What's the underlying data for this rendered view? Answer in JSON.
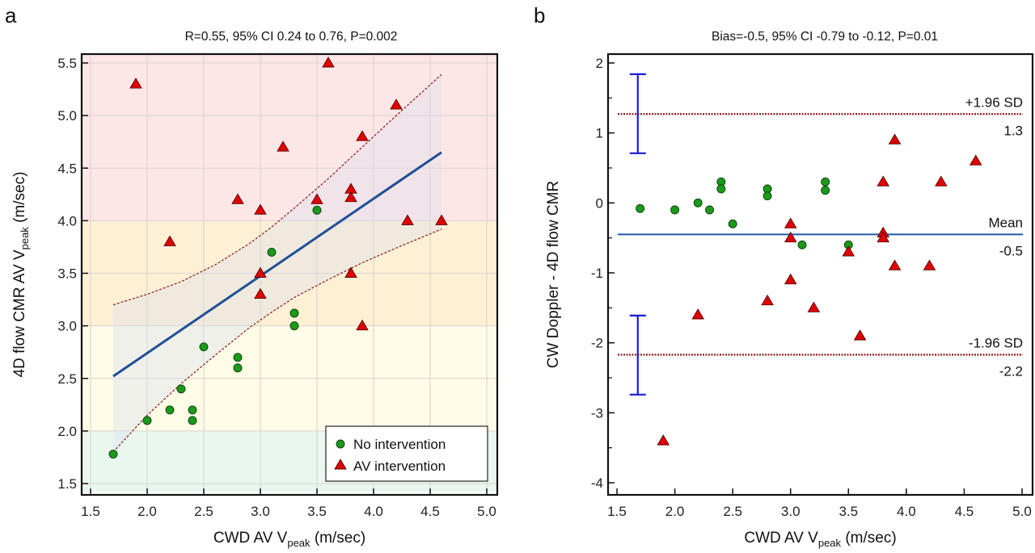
{
  "colors": {
    "no_intervention": "#1a9a1a",
    "av_intervention": "#e00000",
    "regression_line": "#1f4f96",
    "ci_curve": "#8b1a1a",
    "ci_fill": "#d8dcf0",
    "sd_line": "#8b1a1a",
    "mean_line": "#1f5aa6",
    "ci_errorbar": "#1a1ad6",
    "band_severe": "#fde6e6",
    "band_moderate": "#fdf0d5",
    "band_mild": "#fefbe6",
    "band_normal": "#e9f7ee"
  },
  "chart_data": [
    {
      "panel": "a",
      "type": "scatter",
      "title": "R=0.55, 95% CI 0.24 to 0.76, P=0.002",
      "xlabel": "CWD AV V",
      "xlabel_sub": "peak",
      "xlabel_suffix": " (m/sec)",
      "ylabel": "4D flow CMR AV V",
      "ylabel_sub": "peak",
      "ylabel_suffix": " (m/sec)",
      "xlim": [
        1.42,
        5.09
      ],
      "ylim": [
        1.42,
        5.59
      ],
      "xticks": [
        "1.5",
        "2.0",
        "2.5",
        "3.0",
        "3.5",
        "4.0",
        "4.5",
        "5.0"
      ],
      "yticks": [
        "1.5",
        "2.0",
        "2.5",
        "3.0",
        "3.5",
        "4.0",
        "4.5",
        "5.0",
        "5.5"
      ],
      "grid": true,
      "background_bands": [
        {
          "name": "normal",
          "y_from": 1.42,
          "y_to": 2.0
        },
        {
          "name": "mild",
          "y_from": 2.0,
          "y_to": 3.0
        },
        {
          "name": "moderate",
          "y_from": 3.0,
          "y_to": 4.0
        },
        {
          "name": "severe",
          "y_from": 4.0,
          "y_to": 5.59
        }
      ],
      "regression": {
        "x_from": 1.7,
        "x_to": 4.6,
        "y_from": 2.52,
        "y_to": 4.65
      },
      "confidence_band": {
        "x": [
          1.7,
          2.0,
          2.3,
          2.6,
          2.9,
          3.1,
          3.3,
          3.6,
          3.9,
          4.2,
          4.6
        ],
        "upper": [
          3.2,
          3.3,
          3.42,
          3.58,
          3.78,
          3.94,
          4.12,
          4.4,
          4.7,
          5.0,
          5.39
        ],
        "lower": [
          1.8,
          2.15,
          2.45,
          2.72,
          2.98,
          3.13,
          3.27,
          3.44,
          3.6,
          3.74,
          3.92
        ]
      },
      "legend": {
        "placement": "bottom-right",
        "entries": [
          "No intervention",
          "AV intervention"
        ]
      },
      "series": [
        {
          "name": "No intervention",
          "marker": "circle",
          "points": [
            [
              1.7,
              1.78
            ],
            [
              2.0,
              2.1
            ],
            [
              2.2,
              2.2
            ],
            [
              2.3,
              2.4
            ],
            [
              2.4,
              2.2
            ],
            [
              2.4,
              2.1
            ],
            [
              2.5,
              2.8
            ],
            [
              2.8,
              2.7
            ],
            [
              2.8,
              2.6
            ],
            [
              3.1,
              3.7
            ],
            [
              3.3,
              3.12
            ],
            [
              3.3,
              3.0
            ],
            [
              3.5,
              4.1
            ]
          ]
        },
        {
          "name": "AV intervention",
          "marker": "triangle",
          "points": [
            [
              1.9,
              5.3
            ],
            [
              2.2,
              3.8
            ],
            [
              2.8,
              4.2
            ],
            [
              3.0,
              4.1
            ],
            [
              3.0,
              3.5
            ],
            [
              3.0,
              3.3
            ],
            [
              3.2,
              4.7
            ],
            [
              3.5,
              4.2
            ],
            [
              3.6,
              5.5
            ],
            [
              3.8,
              4.3
            ],
            [
              3.8,
              4.22
            ],
            [
              3.8,
              3.5
            ],
            [
              3.9,
              4.8
            ],
            [
              3.9,
              3.0
            ],
            [
              4.2,
              5.1
            ],
            [
              4.3,
              4.0
            ],
            [
              4.6,
              4.0
            ]
          ]
        }
      ]
    },
    {
      "panel": "b",
      "type": "scatter",
      "title": "Bias=-0.5, 95% CI -0.79 to -0.12, P=0.01",
      "xlabel": "CWD AV V",
      "xlabel_sub": "peak",
      "xlabel_suffix": " (m/sec)",
      "ylabel": "CW Doppler - 4D flow CMR",
      "xlim": [
        1.42,
        5.09
      ],
      "ylim": [
        -4.17,
        2.13
      ],
      "xticks": [
        "1.5",
        "2.0",
        "2.5",
        "3.0",
        "3.5",
        "4.0",
        "4.5",
        "5.0"
      ],
      "yticks": [
        "-4",
        "-3",
        "-2",
        "-1",
        "0",
        "1",
        "2"
      ],
      "grid": false,
      "reference_lines": [
        {
          "name": "+1.96 SD",
          "value": 1.27,
          "value_label": "1.3",
          "style": "dotted"
        },
        {
          "name": "Mean",
          "value": -0.45,
          "value_label": "-0.5",
          "style": "solid"
        },
        {
          "name": "-1.96 SD",
          "value": -2.17,
          "value_label": "-2.2",
          "style": "dotted"
        }
      ],
      "ci_errorbars": [
        {
          "x": 1.68,
          "low": 0.71,
          "high": 1.84
        },
        {
          "x": 1.68,
          "low": -2.74,
          "high": -1.61
        }
      ],
      "series": [
        {
          "name": "No intervention",
          "marker": "circle",
          "points": [
            [
              1.7,
              -0.08
            ],
            [
              2.0,
              -0.1
            ],
            [
              2.2,
              0.0
            ],
            [
              2.3,
              -0.1
            ],
            [
              2.4,
              0.3
            ],
            [
              2.4,
              0.2
            ],
            [
              2.5,
              -0.3
            ],
            [
              2.8,
              0.2
            ],
            [
              2.8,
              0.1
            ],
            [
              3.1,
              -0.6
            ],
            [
              3.3,
              0.3
            ],
            [
              3.3,
              0.18
            ],
            [
              3.5,
              -0.6
            ]
          ]
        },
        {
          "name": "AV intervention",
          "marker": "triangle",
          "points": [
            [
              1.9,
              -3.4
            ],
            [
              2.2,
              -1.6
            ],
            [
              2.8,
              -1.4
            ],
            [
              3.0,
              -0.3
            ],
            [
              3.0,
              -0.5
            ],
            [
              3.0,
              -1.1
            ],
            [
              3.2,
              -1.5
            ],
            [
              3.5,
              -0.7
            ],
            [
              3.6,
              -1.9
            ],
            [
              3.8,
              0.3
            ],
            [
              3.8,
              -0.43
            ],
            [
              3.8,
              -0.5
            ],
            [
              3.9,
              0.9
            ],
            [
              3.9,
              -0.9
            ],
            [
              4.2,
              -0.9
            ],
            [
              4.3,
              0.3
            ],
            [
              4.6,
              0.6
            ]
          ]
        }
      ]
    }
  ]
}
